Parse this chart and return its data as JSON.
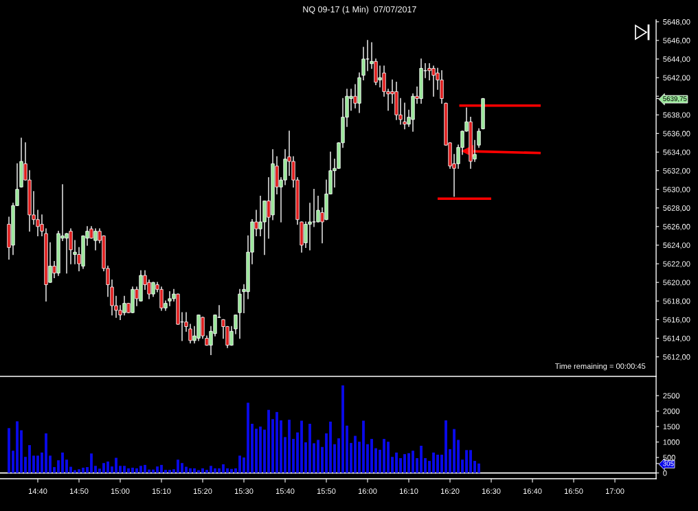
{
  "chart_data": [
    {
      "type": "candlestick",
      "title": "NQ 09-17 (1 Min)  07/07/2017",
      "x": [
        "2017-07-07T14:33",
        "2017-07-07T14:34",
        "2017-07-07T14:35",
        "2017-07-07T14:36",
        "2017-07-07T14:37",
        "2017-07-07T14:38",
        "2017-07-07T14:39",
        "2017-07-07T14:40",
        "2017-07-07T14:41",
        "2017-07-07T14:42",
        "2017-07-07T14:43",
        "2017-07-07T14:44",
        "2017-07-07T14:45",
        "2017-07-07T14:46",
        "2017-07-07T14:47",
        "2017-07-07T14:48",
        "2017-07-07T14:49",
        "2017-07-07T14:50",
        "2017-07-07T14:51",
        "2017-07-07T14:52",
        "2017-07-07T14:53",
        "2017-07-07T14:54",
        "2017-07-07T14:55",
        "2017-07-07T14:56",
        "2017-07-07T14:57",
        "2017-07-07T14:58",
        "2017-07-07T14:59",
        "2017-07-07T15:00",
        "2017-07-07T15:01",
        "2017-07-07T15:02",
        "2017-07-07T15:03",
        "2017-07-07T15:04",
        "2017-07-07T15:05",
        "2017-07-07T15:06",
        "2017-07-07T15:07",
        "2017-07-07T15:08",
        "2017-07-07T15:09",
        "2017-07-07T15:10",
        "2017-07-07T15:11",
        "2017-07-07T15:12",
        "2017-07-07T15:13",
        "2017-07-07T15:14",
        "2017-07-07T15:15",
        "2017-07-07T15:16",
        "2017-07-07T15:17",
        "2017-07-07T15:18",
        "2017-07-07T15:19",
        "2017-07-07T15:20",
        "2017-07-07T15:21",
        "2017-07-07T15:22",
        "2017-07-07T15:23",
        "2017-07-07T15:24",
        "2017-07-07T15:25",
        "2017-07-07T15:26",
        "2017-07-07T15:27",
        "2017-07-07T15:28",
        "2017-07-07T15:29",
        "2017-07-07T15:30",
        "2017-07-07T15:31",
        "2017-07-07T15:32",
        "2017-07-07T15:33",
        "2017-07-07T15:34",
        "2017-07-07T15:35",
        "2017-07-07T15:36",
        "2017-07-07T15:37",
        "2017-07-07T15:38",
        "2017-07-07T15:39",
        "2017-07-07T15:40",
        "2017-07-07T15:41",
        "2017-07-07T15:42",
        "2017-07-07T15:43",
        "2017-07-07T15:44",
        "2017-07-07T15:45",
        "2017-07-07T15:46",
        "2017-07-07T15:47",
        "2017-07-07T15:48",
        "2017-07-07T15:49",
        "2017-07-07T15:50",
        "2017-07-07T15:51",
        "2017-07-07T15:52",
        "2017-07-07T15:53",
        "2017-07-07T15:54",
        "2017-07-07T15:55",
        "2017-07-07T15:56",
        "2017-07-07T15:57",
        "2017-07-07T15:58",
        "2017-07-07T15:59",
        "2017-07-07T16:00",
        "2017-07-07T16:01",
        "2017-07-07T16:02",
        "2017-07-07T16:03",
        "2017-07-07T16:04",
        "2017-07-07T16:05",
        "2017-07-07T16:06",
        "2017-07-07T16:07",
        "2017-07-07T16:08",
        "2017-07-07T16:09",
        "2017-07-07T16:10",
        "2017-07-07T16:11",
        "2017-07-07T16:12",
        "2017-07-07T16:13",
        "2017-07-07T16:14",
        "2017-07-07T16:15",
        "2017-07-07T16:16",
        "2017-07-07T16:17",
        "2017-07-07T16:18",
        "2017-07-07T16:19",
        "2017-07-07T16:20",
        "2017-07-07T16:21",
        "2017-07-07T16:22",
        "2017-07-07T16:23",
        "2017-07-07T16:24",
        "2017-07-07T16:25",
        "2017-07-07T16:26",
        "2017-07-07T16:27",
        "2017-07-07T16:28"
      ],
      "ohlc": [
        [
          5626.25,
          5627,
          5622.5,
          5623.75
        ],
        [
          5624,
          5628.5,
          5623,
          5628.25
        ],
        [
          5628.25,
          5632.75,
          5628.25,
          5630
        ],
        [
          5630.25,
          5635.5,
          5630.25,
          5633
        ],
        [
          5632.75,
          5635,
          5631,
          5631
        ],
        [
          5631,
          5632,
          5625.5,
          5627.25
        ],
        [
          5627.25,
          5629.75,
          5626.25,
          5626.75
        ],
        [
          5626.75,
          5627.75,
          5625,
          5626
        ],
        [
          5626.25,
          5627.25,
          5625,
          5625.5
        ],
        [
          5625.25,
          5625.75,
          5618,
          5619.75
        ],
        [
          5620,
          5624.25,
          5620,
          5621.75
        ],
        [
          5621.75,
          5622.25,
          5620.5,
          5621
        ],
        [
          5621,
          5625.5,
          5620.75,
          5625.25
        ],
        [
          5624.75,
          5630.5,
          5624.5,
          5625
        ],
        [
          5624.75,
          5625.25,
          5621,
          5625.25
        ],
        [
          5625.5,
          5625.75,
          5622,
          5623.5
        ],
        [
          5623,
          5624.5,
          5622,
          5623.25
        ],
        [
          5623,
          5623.75,
          5621.25,
          5622
        ],
        [
          5621.75,
          5625,
          5621.5,
          5625
        ],
        [
          5624.75,
          5626,
          5624,
          5625.5
        ],
        [
          5625.75,
          5626,
          5624.75,
          5624.75
        ],
        [
          5624.5,
          5625.75,
          5623.5,
          5625.5
        ],
        [
          5625.5,
          5625.75,
          5624.25,
          5624.5
        ],
        [
          5625,
          5625,
          5621.25,
          5621.5
        ],
        [
          5621.5,
          5621.75,
          5618.5,
          5619.75
        ],
        [
          5619.5,
          5620.25,
          5616.5,
          5617.5
        ],
        [
          5617.5,
          5618.5,
          5616.25,
          5617
        ],
        [
          5617,
          5617.5,
          5616,
          5616.5
        ],
        [
          5616.75,
          5618.5,
          5616.5,
          5617.75
        ],
        [
          5617.75,
          5617.75,
          5616.75,
          5616.75
        ],
        [
          5616.75,
          5619.5,
          5616.75,
          5619.25
        ],
        [
          5619.25,
          5619.5,
          5617.5,
          5618.25
        ],
        [
          5618,
          5621.25,
          5618,
          5620.75
        ],
        [
          5620.75,
          5621.25,
          5619.25,
          5619.75
        ],
        [
          5620,
          5620.25,
          5618.25,
          5618.75
        ],
        [
          5618.75,
          5620,
          5618.5,
          5620
        ],
        [
          5619.75,
          5620,
          5619,
          5619.25
        ],
        [
          5619.25,
          5619.5,
          5617,
          5617.25
        ],
        [
          5617.25,
          5618,
          5617,
          5617.75
        ],
        [
          5618,
          5619,
          5617.5,
          5618.25
        ],
        [
          5618.25,
          5619.25,
          5618,
          5618.75
        ],
        [
          5618.75,
          5618.75,
          5615.5,
          5615.5
        ],
        [
          5615.75,
          5616.75,
          5613.75,
          5615.75
        ],
        [
          5615.75,
          5616.75,
          5614.75,
          5615.25
        ],
        [
          5615,
          5615.5,
          5613.5,
          5613.75
        ],
        [
          5613.75,
          5615.25,
          5613.5,
          5614.25
        ],
        [
          5614,
          5616.5,
          5613.75,
          5616.5
        ],
        [
          5616.25,
          5616.25,
          5614,
          5614.25
        ],
        [
          5614,
          5614.25,
          5613.25,
          5613.25
        ],
        [
          5613.25,
          5615.25,
          5612.25,
          5614.75
        ],
        [
          5614.5,
          5616.5,
          5614.25,
          5616.5
        ],
        [
          5616.25,
          5617.5,
          5616.25,
          5616.25
        ],
        [
          5616,
          5616,
          5614,
          5615.25
        ],
        [
          5615.25,
          5615.25,
          5613,
          5613.25
        ],
        [
          5613.25,
          5615.25,
          5613.25,
          5614.75
        ],
        [
          5615,
          5616.5,
          5614.5,
          5616.5
        ],
        [
          5616.75,
          5619.25,
          5614,
          5618.75
        ],
        [
          5619,
          5619.75,
          5616.75,
          5619.25
        ],
        [
          5619,
          5625,
          5618.25,
          5623.25
        ],
        [
          5623.25,
          5626.75,
          5622,
          5626.5
        ],
        [
          5626.5,
          5627.75,
          5625,
          5625.75
        ],
        [
          5625.75,
          5629.25,
          5625,
          5626.5
        ],
        [
          5626.5,
          5628.75,
          5623,
          5628.75
        ],
        [
          5628.75,
          5631.25,
          5624.75,
          5627
        ],
        [
          5627.25,
          5634.25,
          5626.75,
          5632.75
        ],
        [
          5632.5,
          5633.5,
          5629.5,
          5630.25
        ],
        [
          5630.25,
          5631.25,
          5626.5,
          5631
        ],
        [
          5631,
          5634.25,
          5630.5,
          5633.25
        ],
        [
          5633.5,
          5636.25,
          5631.5,
          5633
        ],
        [
          5633,
          5633.5,
          5630.25,
          5631
        ],
        [
          5631,
          5631.25,
          5626.25,
          5626.75
        ],
        [
          5626.5,
          5626.5,
          5623.25,
          5624
        ],
        [
          5624.25,
          5626.5,
          5623.75,
          5626.25
        ],
        [
          5626.25,
          5628.5,
          5623.5,
          5626.5
        ],
        [
          5626.5,
          5630,
          5626,
          5626.5
        ],
        [
          5626.5,
          5629.25,
          5626.5,
          5627.75
        ],
        [
          5627.5,
          5628,
          5624.25,
          5626.5
        ],
        [
          5626.75,
          5631,
          5626.75,
          5629.5
        ],
        [
          5629.5,
          5634,
          5629.5,
          5632
        ],
        [
          5632,
          5633.25,
          5630.25,
          5632.25
        ],
        [
          5632.25,
          5635,
          5632.25,
          5635
        ],
        [
          5635,
          5639.75,
          5634.5,
          5637.75
        ],
        [
          5637.75,
          5640.75,
          5636.75,
          5640
        ],
        [
          5639.75,
          5640.75,
          5638.5,
          5640
        ],
        [
          5640,
          5641.25,
          5638.75,
          5639.25
        ],
        [
          5639.25,
          5642.5,
          5638.25,
          5642
        ],
        [
          5642.25,
          5645.25,
          5641.75,
          5644
        ],
        [
          5644,
          5646,
          5642.75,
          5644
        ],
        [
          5643.5,
          5645.75,
          5643,
          5643.75
        ],
        [
          5643.75,
          5644,
          5641.25,
          5641.5
        ],
        [
          5641.75,
          5643.25,
          5641,
          5642
        ],
        [
          5642.5,
          5643.25,
          5640,
          5640.5
        ],
        [
          5640.5,
          5640.75,
          5638.5,
          5640.25
        ],
        [
          5640.5,
          5641.75,
          5639.25,
          5640.25
        ],
        [
          5640.5,
          5641.5,
          5637.5,
          5638
        ],
        [
          5638,
          5639.75,
          5637,
          5637.5
        ],
        [
          5637.25,
          5639.25,
          5636.5,
          5637
        ],
        [
          5637,
          5638.5,
          5636.75,
          5637.75
        ],
        [
          5637.5,
          5640.25,
          5636.25,
          5640
        ],
        [
          5640,
          5641,
          5639.25,
          5639.75
        ],
        [
          5639.75,
          5644,
          5639.25,
          5643
        ],
        [
          5642.75,
          5643.5,
          5642,
          5642.75
        ],
        [
          5643,
          5643.5,
          5641.75,
          5642.75
        ],
        [
          5643,
          5643.25,
          5640,
          5642.25
        ],
        [
          5642.5,
          5643,
          5640.75,
          5641.75
        ],
        [
          5641.75,
          5642.75,
          5639.25,
          5639.75
        ],
        [
          5639.25,
          5639.25,
          5634.75,
          5634.75
        ],
        [
          5635,
          5635,
          5632.25,
          5632.5
        ],
        [
          5632.75,
          5633.75,
          5629.25,
          5632.25
        ],
        [
          5632.75,
          5634.75,
          5632.25,
          5634.5
        ],
        [
          5634.5,
          5636.25,
          5633.75,
          5636.25
        ],
        [
          5636.25,
          5638.75,
          5636.25,
          5637.25
        ],
        [
          5637.25,
          5637.75,
          5632.25,
          5633
        ],
        [
          5633.25,
          5635.25,
          5633,
          5633.75
        ],
        [
          5634.75,
          5636.5,
          5634.5,
          5636.25
        ],
        [
          5636.5,
          5639.75,
          5636.5,
          5639.75
        ]
      ],
      "colors": [
        "#e01b1b",
        "#98e698",
        "#98e698",
        "#98e698",
        "#e01b1b",
        "#e01b1b",
        "#e01b1b",
        "#e01b1b",
        "#e01b1b",
        "#e01b1b",
        "#98e698",
        "#e01b1b",
        "#98e698",
        "#98e698",
        "#98e698",
        "#e01b1b",
        "#98e698",
        "#e01b1b",
        "#98e698",
        "#98e698",
        "#e01b1b",
        "#98e698",
        "#e01b1b",
        "#e01b1b",
        "#e01b1b",
        "#e01b1b",
        "#e01b1b",
        "#e01b1b",
        "#98e698",
        "#e01b1b",
        "#98e698",
        "#e01b1b",
        "#98e698",
        "#e01b1b",
        "#e01b1b",
        "#98e698",
        "#e01b1b",
        "#e01b1b",
        "#98e698",
        "#98e698",
        "#98e698",
        "#e01b1b",
        "#ffffff",
        "#e01b1b",
        "#e01b1b",
        "#98e698",
        "#98e698",
        "#e01b1b",
        "#e01b1b",
        "#98e698",
        "#98e698",
        "#ffffff",
        "#e01b1b",
        "#e01b1b",
        "#98e698",
        "#98e698",
        "#98e698",
        "#98e698",
        "#98e698",
        "#98e698",
        "#e01b1b",
        "#98e698",
        "#98e698",
        "#e01b1b",
        "#98e698",
        "#e01b1b",
        "#98e698",
        "#98e698",
        "#e01b1b",
        "#e01b1b",
        "#e01b1b",
        "#e01b1b",
        "#98e698",
        "#98e698",
        "#ffffff",
        "#98e698",
        "#e01b1b",
        "#98e698",
        "#98e698",
        "#98e698",
        "#98e698",
        "#98e698",
        "#98e698",
        "#98e698",
        "#e01b1b",
        "#98e698",
        "#98e698",
        "#ffffff",
        "#98e698",
        "#e01b1b",
        "#98e698",
        "#e01b1b",
        "#e01b1b",
        "#e01b1b",
        "#e01b1b",
        "#e01b1b",
        "#e01b1b",
        "#98e698",
        "#98e698",
        "#e01b1b",
        "#98e698",
        "#ffffff",
        "#e01b1b",
        "#e01b1b",
        "#e01b1b",
        "#e01b1b",
        "#e01b1b",
        "#e01b1b",
        "#e01b1b",
        "#98e698",
        "#98e698",
        "#98e698",
        "#e01b1b",
        "#98e698",
        "#98e698",
        "#98e698"
      ],
      "series": [
        {
          "type": "line",
          "x": [
            "2017-07-07T16:22:15",
            "2017-07-07T16:42"
          ],
          "values": [
            5639,
            5639
          ],
          "color": "#ff0000"
        },
        {
          "type": "line",
          "x": [
            "2017-07-07T16:17",
            "2017-07-07T16:30"
          ],
          "values": [
            5629,
            5629
          ],
          "color": "#ff0000"
        },
        {
          "type": "line",
          "x": [
            "2017-07-07T16:24:10",
            "2017-07-07T16:42"
          ],
          "values": [
            5634.1,
            5633.9
          ],
          "color": "#ff0000",
          "marker": "triangle"
        }
      ],
      "xlim": [
        "2017-07-07T14:30:50",
        "2017-07-07T17:10"
      ],
      "ylim": [
        5609.9,
        5648.2
      ],
      "yticks": [
        {
          "value": 5612,
          "label": "5612,00"
        },
        {
          "value": 5614,
          "label": "5614,00"
        },
        {
          "value": 5616,
          "label": "5616,00"
        },
        {
          "value": 5618,
          "label": "5618,00"
        },
        {
          "value": 5620,
          "label": "5620,00"
        },
        {
          "value": 5622,
          "label": "5622,00"
        },
        {
          "value": 5624,
          "label": "5624,00"
        },
        {
          "value": 5626,
          "label": "5626,00"
        },
        {
          "value": 5628,
          "label": "5628,00"
        },
        {
          "value": 5630,
          "label": "5630,00"
        },
        {
          "value": 5632,
          "label": "5632,00"
        },
        {
          "value": 5634,
          "label": "5634,00"
        },
        {
          "value": 5636,
          "label": "5636,00"
        },
        {
          "value": 5638,
          "label": "5638,00"
        },
        {
          "value": 5639.75,
          "label": "5639,75"
        },
        {
          "value": 5640,
          "label": null
        },
        {
          "value": 5642,
          "label": "5642,00"
        },
        {
          "value": 5644,
          "label": "5644,00"
        },
        {
          "value": 5646,
          "label": "5646,00"
        },
        {
          "value": 5648,
          "label": "5648,00"
        }
      ],
      "tick_labels": "y",
      "annotations": [
        "Time remaining = 00:00:45"
      ]
    },
    {
      "type": "bar",
      "x": [
        "2017-07-07T14:33",
        "2017-07-07T14:34",
        "2017-07-07T14:35",
        "2017-07-07T14:36",
        "2017-07-07T14:37",
        "2017-07-07T14:38",
        "2017-07-07T14:39",
        "2017-07-07T14:40",
        "2017-07-07T14:41",
        "2017-07-07T14:42",
        "2017-07-07T14:43",
        "2017-07-07T14:44",
        "2017-07-07T14:45",
        "2017-07-07T14:46",
        "2017-07-07T14:47",
        "2017-07-07T14:48",
        "2017-07-07T14:49",
        "2017-07-07T14:50",
        "2017-07-07T14:51",
        "2017-07-07T14:52",
        "2017-07-07T14:53",
        "2017-07-07T14:54",
        "2017-07-07T14:55",
        "2017-07-07T14:56",
        "2017-07-07T14:57",
        "2017-07-07T14:58",
        "2017-07-07T14:59",
        "2017-07-07T15:00",
        "2017-07-07T15:01",
        "2017-07-07T15:02",
        "2017-07-07T15:03",
        "2017-07-07T15:04",
        "2017-07-07T15:05",
        "2017-07-07T15:06",
        "2017-07-07T15:07",
        "2017-07-07T15:08",
        "2017-07-07T15:09",
        "2017-07-07T15:10",
        "2017-07-07T15:11",
        "2017-07-07T15:12",
        "2017-07-07T15:13",
        "2017-07-07T15:14",
        "2017-07-07T15:15",
        "2017-07-07T15:16",
        "2017-07-07T15:17",
        "2017-07-07T15:18",
        "2017-07-07T15:19",
        "2017-07-07T15:20",
        "2017-07-07T15:21",
        "2017-07-07T15:22",
        "2017-07-07T15:23",
        "2017-07-07T15:24",
        "2017-07-07T15:25",
        "2017-07-07T15:26",
        "2017-07-07T15:27",
        "2017-07-07T15:28",
        "2017-07-07T15:29",
        "2017-07-07T15:30",
        "2017-07-07T15:31",
        "2017-07-07T15:32",
        "2017-07-07T15:33",
        "2017-07-07T15:34",
        "2017-07-07T15:35",
        "2017-07-07T15:36",
        "2017-07-07T15:37",
        "2017-07-07T15:38",
        "2017-07-07T15:39",
        "2017-07-07T15:40",
        "2017-07-07T15:41",
        "2017-07-07T15:42",
        "2017-07-07T15:43",
        "2017-07-07T15:44",
        "2017-07-07T15:45",
        "2017-07-07T15:46",
        "2017-07-07T15:47",
        "2017-07-07T15:48",
        "2017-07-07T15:49",
        "2017-07-07T15:50",
        "2017-07-07T15:51",
        "2017-07-07T15:52",
        "2017-07-07T15:53",
        "2017-07-07T15:54",
        "2017-07-07T15:55",
        "2017-07-07T15:56",
        "2017-07-07T15:57",
        "2017-07-07T15:58",
        "2017-07-07T15:59",
        "2017-07-07T16:00",
        "2017-07-07T16:01",
        "2017-07-07T16:02",
        "2017-07-07T16:03",
        "2017-07-07T16:04",
        "2017-07-07T16:05",
        "2017-07-07T16:06",
        "2017-07-07T16:07",
        "2017-07-07T16:08",
        "2017-07-07T16:09",
        "2017-07-07T16:10",
        "2017-07-07T16:11",
        "2017-07-07T16:12",
        "2017-07-07T16:13",
        "2017-07-07T16:14",
        "2017-07-07T16:15",
        "2017-07-07T16:16",
        "2017-07-07T16:17",
        "2017-07-07T16:18",
        "2017-07-07T16:19",
        "2017-07-07T16:20",
        "2017-07-07T16:21",
        "2017-07-07T16:22",
        "2017-07-07T16:23",
        "2017-07-07T16:24",
        "2017-07-07T16:25",
        "2017-07-07T16:26",
        "2017-07-07T16:27"
      ],
      "values": [
        1450,
        720,
        1670,
        1380,
        520,
        900,
        560,
        560,
        660,
        1280,
        560,
        190,
        410,
        660,
        430,
        200,
        90,
        120,
        170,
        190,
        630,
        230,
        140,
        320,
        370,
        210,
        490,
        230,
        230,
        150,
        170,
        150,
        230,
        260,
        110,
        110,
        210,
        260,
        100,
        100,
        120,
        430,
        320,
        200,
        150,
        150,
        90,
        150,
        100,
        230,
        150,
        150,
        280,
        150,
        130,
        150,
        560,
        500,
        2270,
        1590,
        1430,
        1500,
        1400,
        2040,
        1740,
        1970,
        1700,
        1160,
        1720,
        1100,
        1310,
        1690,
        990,
        1590,
        960,
        1070,
        840,
        1280,
        1660,
        930,
        1120,
        2830,
        1530,
        970,
        1200,
        1010,
        1690,
        930,
        1100,
        800,
        750,
        1100,
        1010,
        520,
        660,
        480,
        610,
        640,
        720,
        480,
        880,
        480,
        390,
        660,
        590,
        590,
        1700,
        770,
        1420,
        1070,
        430,
        740,
        740,
        390,
        305
      ],
      "color": "#0a0ae8",
      "xlim": [
        "2017-07-07T14:30:50",
        "2017-07-07T17:10"
      ],
      "xticks": [
        {
          "value": "2017-07-07T14:40",
          "label": "14:40"
        },
        {
          "value": "2017-07-07T14:50",
          "label": "14:50"
        },
        {
          "value": "2017-07-07T15:00",
          "label": "15:00"
        },
        {
          "value": "2017-07-07T15:10",
          "label": "15:10"
        },
        {
          "value": "2017-07-07T15:20",
          "label": "15:20"
        },
        {
          "value": "2017-07-07T15:30",
          "label": "15:30"
        },
        {
          "value": "2017-07-07T15:40",
          "label": "15:40"
        },
        {
          "value": "2017-07-07T15:50",
          "label": "15:50"
        },
        {
          "value": "2017-07-07T16:00",
          "label": "16:00"
        },
        {
          "value": "2017-07-07T16:10",
          "label": "16:10"
        },
        {
          "value": "2017-07-07T16:20",
          "label": "16:20"
        },
        {
          "value": "2017-07-07T16:30",
          "label": "16:30"
        },
        {
          "value": "2017-07-07T16:40",
          "label": "16:40"
        },
        {
          "value": "2017-07-07T16:50",
          "label": "16:50"
        },
        {
          "value": "2017-07-07T17:00",
          "label": "17:00"
        }
      ],
      "ylim": [
        -186,
        3100
      ],
      "yticks": [
        0,
        305,
        500,
        1000,
        1500,
        2000,
        2500
      ],
      "ref_lines": [
        {
          "axis": "y",
          "value": 0,
          "color": "#ffffff"
        }
      ]
    }
  ]
}
